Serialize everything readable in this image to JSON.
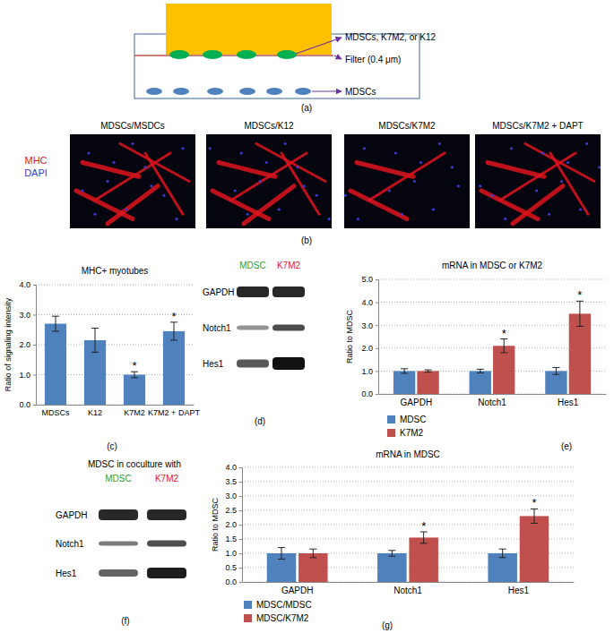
{
  "diagram": {
    "panel_label": "(a)",
    "labels": [
      "MDSCs, K7M2, or K12",
      "Filter (0.4 μm)",
      "MDSCs"
    ]
  },
  "images": {
    "panel_label": "(b)",
    "titles": [
      "MDSCs/MSDCs",
      "MDSCs/K12",
      "MDSCs/K7M2",
      "MDSCs/K7M2 + DAPT"
    ],
    "stains": [
      {
        "text": "MHC",
        "color": "#e0141e"
      },
      {
        "text": "DAPI",
        "color": "#3b3bd0"
      }
    ]
  },
  "gels": [
    {
      "panel_label": "(d)",
      "headers": [
        {
          "text": "MDSC",
          "color": "#2ca02c"
        },
        {
          "text": "K7M2",
          "color": "#e0201b"
        }
      ],
      "rows": [
        "GAPDH",
        "Notch1",
        "Hes1"
      ]
    },
    {
      "panel_label": "(f)",
      "title": "MDSC in coculture with",
      "headers": [
        {
          "text": "MDSC",
          "color": "#2ca02c"
        },
        {
          "text": "K7M2",
          "color": "#e0201b"
        }
      ],
      "rows": [
        "GAPDH",
        "Notch1",
        "Hes1"
      ]
    }
  ],
  "chart_data": [
    {
      "type": "bar",
      "panel_label": "(c)",
      "title": "MHC+ myotubes",
      "y_label": "Ratio of signaling intensity",
      "categories": [
        "MDSCs",
        "K12",
        "K7M2",
        "K7M2 + DAPT"
      ],
      "values": [
        2.7,
        2.15,
        1.0,
        2.45
      ],
      "errors": [
        0.25,
        0.4,
        0.1,
        0.3
      ],
      "color": "#4f81bd",
      "ylim": [
        0,
        4
      ],
      "yticks": [
        {
          "value": 0,
          "label": "0.0"
        },
        {
          "value": 1,
          "label": "1.0"
        },
        {
          "value": 2,
          "label": "2.0"
        },
        {
          "value": 3,
          "label": "3.0"
        },
        {
          "value": 4,
          "label": "4.0"
        }
      ],
      "grid": true,
      "annotations": [
        {
          "text": "*",
          "category": "K7M2"
        },
        {
          "text": "*",
          "category": "K7M2 + DAPT"
        }
      ]
    },
    {
      "type": "bar",
      "panel_label": "(e)",
      "title": "mRNA in MDSC or K7M2",
      "y_label": "Ratio to MDSC",
      "categories": [
        "GAPDH",
        "Notch1",
        "Hes1"
      ],
      "series": [
        {
          "name": "MDSC",
          "color": "#4f81bd",
          "values": [
            1.0,
            1.0,
            1.0
          ],
          "errors": [
            0.1,
            0.08,
            0.15
          ]
        },
        {
          "name": "K7M2",
          "color": "#c0504d",
          "values": [
            1.0,
            2.1,
            3.5
          ],
          "errors": [
            0.05,
            0.3,
            0.55
          ]
        }
      ],
      "ylim": [
        0,
        5
      ],
      "yticks": [
        {
          "value": 0,
          "label": "0.0"
        },
        {
          "value": 1,
          "label": "1.0"
        },
        {
          "value": 2,
          "label": "2.0"
        },
        {
          "value": 3,
          "label": "3.0"
        },
        {
          "value": 4,
          "label": "4.0"
        },
        {
          "value": 5,
          "label": "5.0"
        }
      ],
      "grid": true,
      "legend": "bottom",
      "annotations": [
        {
          "text": "*",
          "category": "Notch1",
          "series": "K7M2"
        },
        {
          "text": "*",
          "category": "Hes1",
          "series": "K7M2"
        }
      ]
    },
    {
      "type": "bar",
      "panel_label": "(g)",
      "title": "mRNA in MDSC",
      "y_label": "Ratio to MDSC",
      "categories": [
        "GAPDH",
        "Notch1",
        "Hes1"
      ],
      "series": [
        {
          "name": "MDSC/MDSC",
          "color": "#4f81bd",
          "values": [
            1.0,
            1.0,
            1.0
          ],
          "errors": [
            0.2,
            0.1,
            0.15
          ]
        },
        {
          "name": "MDSC/K7M2",
          "color": "#c0504d",
          "values": [
            1.0,
            1.55,
            2.3
          ],
          "errors": [
            0.15,
            0.2,
            0.25
          ]
        }
      ],
      "ylim": [
        0,
        4
      ],
      "yticks": [
        {
          "value": 0,
          "label": "0.0"
        },
        {
          "value": 0.5,
          "label": "0.5"
        },
        {
          "value": 1,
          "label": "1.0"
        },
        {
          "value": 1.5,
          "label": "1.5"
        },
        {
          "value": 2,
          "label": "2.0"
        },
        {
          "value": 2.5,
          "label": "2.5"
        },
        {
          "value": 3,
          "label": "3.0"
        },
        {
          "value": 3.5,
          "label": "3.5"
        },
        {
          "value": 4,
          "label": "4.0"
        }
      ],
      "grid": true,
      "legend": "bottom",
      "annotations": [
        {
          "text": "*",
          "category": "Notch1",
          "series": "MDSC/K7M2"
        },
        {
          "text": "*",
          "category": "Hes1",
          "series": "MDSC/K7M2"
        }
      ]
    }
  ]
}
